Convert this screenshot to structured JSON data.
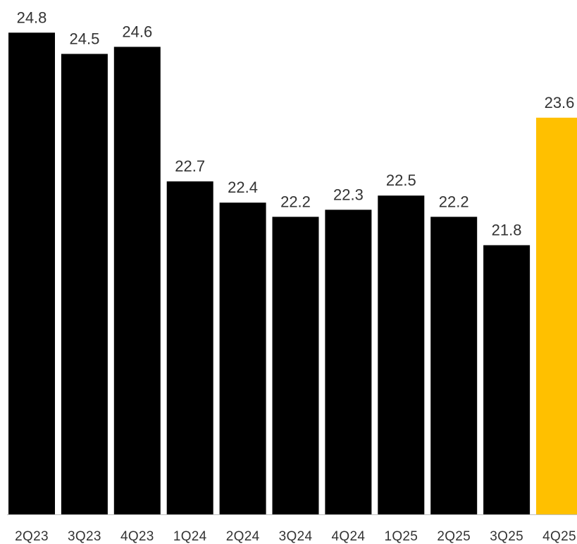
{
  "chart_data": {
    "type": "bar",
    "categories": [
      "2Q23",
      "3Q23",
      "4Q23",
      "1Q24",
      "2Q24",
      "3Q24",
      "4Q24",
      "1Q25",
      "2Q25",
      "3Q25",
      "4Q25"
    ],
    "values": [
      24.8,
      24.5,
      24.6,
      22.7,
      22.4,
      22.2,
      22.3,
      22.5,
      22.2,
      21.8,
      23.6
    ],
    "title": "",
    "xlabel": "",
    "ylabel": "",
    "grid": false,
    "legend": "none",
    "data_labels": true,
    "colors": {
      "bar": "#000000",
      "highlight_bar": "#FFC000",
      "highlight_index": 10,
      "axis": "#BFBFBF",
      "label_text": "#333333"
    }
  }
}
